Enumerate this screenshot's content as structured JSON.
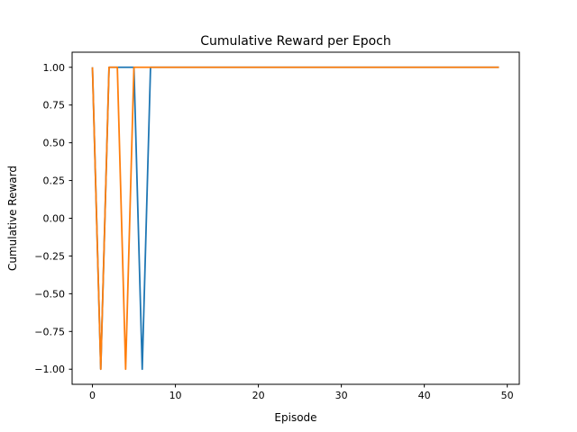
{
  "chart_data": {
    "type": "line",
    "title": "Cumulative Reward per Epoch",
    "xlabel": "Episode",
    "ylabel": "Cumulative Reward",
    "xlim": [
      -2.45,
      51.45
    ],
    "ylim": [
      -1.1,
      1.1
    ],
    "xticks": [
      0,
      10,
      20,
      30,
      40,
      50
    ],
    "xtick_labels": [
      "0",
      "10",
      "20",
      "30",
      "40",
      "50"
    ],
    "yticks": [
      -1.0,
      -0.75,
      -0.5,
      -0.25,
      0.0,
      0.25,
      0.5,
      0.75,
      1.0
    ],
    "ytick_labels": [
      "−1.00",
      "−0.75",
      "−0.50",
      "−0.25",
      "0.00",
      "0.25",
      "0.50",
      "0.75",
      "1.00"
    ],
    "grid": false,
    "legend": "none",
    "x": [
      0,
      1,
      2,
      3,
      4,
      5,
      6,
      7,
      8,
      9,
      10,
      11,
      12,
      13,
      14,
      15,
      16,
      17,
      18,
      19,
      20,
      21,
      22,
      23,
      24,
      25,
      26,
      27,
      28,
      29,
      30,
      31,
      32,
      33,
      34,
      35,
      36,
      37,
      38,
      39,
      40,
      41,
      42,
      43,
      44,
      45,
      46,
      47,
      48,
      49
    ],
    "series": [
      {
        "color": "#1f77b4",
        "values": [
          1,
          -1,
          1,
          1,
          1,
          1,
          -1,
          1,
          1,
          1,
          1,
          1,
          1,
          1,
          1,
          1,
          1,
          1,
          1,
          1,
          1,
          1,
          1,
          1,
          1,
          1,
          1,
          1,
          1,
          1,
          1,
          1,
          1,
          1,
          1,
          1,
          1,
          1,
          1,
          1,
          1,
          1,
          1,
          1,
          1,
          1,
          1,
          1,
          1,
          1
        ]
      },
      {
        "color": "#ff7f0e",
        "values": [
          1,
          -1,
          1,
          1,
          -1,
          1,
          1,
          1,
          1,
          1,
          1,
          1,
          1,
          1,
          1,
          1,
          1,
          1,
          1,
          1,
          1,
          1,
          1,
          1,
          1,
          1,
          1,
          1,
          1,
          1,
          1,
          1,
          1,
          1,
          1,
          1,
          1,
          1,
          1,
          1,
          1,
          1,
          1,
          1,
          1,
          1,
          1,
          1,
          1,
          1
        ]
      }
    ]
  }
}
